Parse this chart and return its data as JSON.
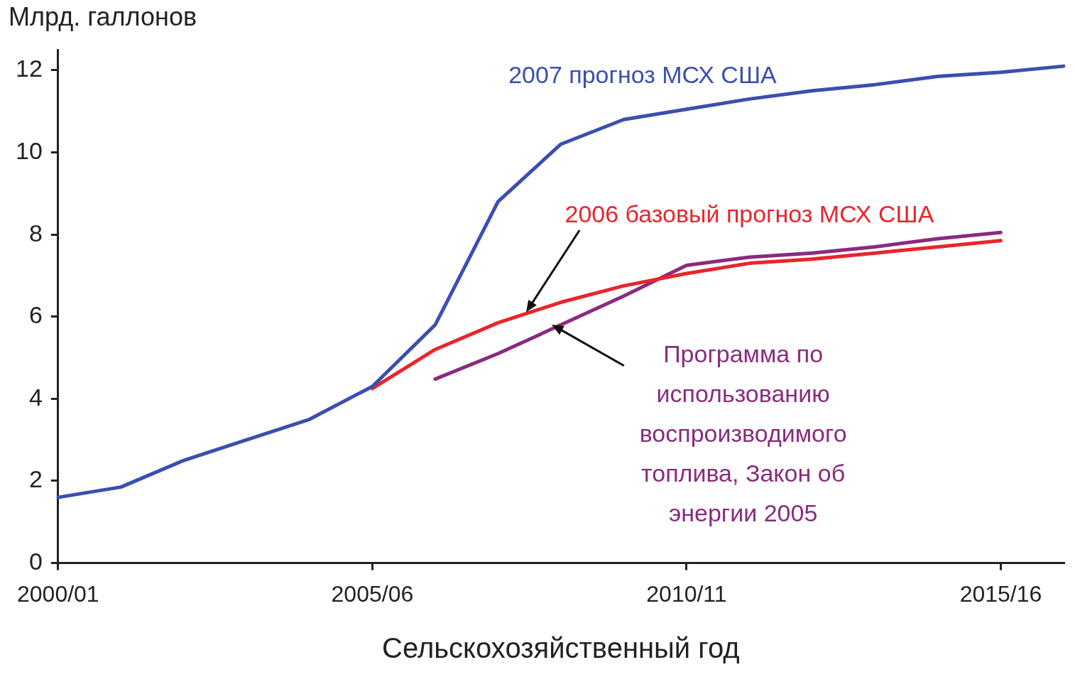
{
  "chart_data": {
    "type": "line",
    "xlabel": "Сельскохозяйственный год",
    "ylabel": "Млрд. галлонов",
    "categories": [
      "2000/01",
      null,
      null,
      null,
      null,
      "2005/06",
      null,
      null,
      null,
      null,
      "2010/11",
      null,
      null,
      null,
      null,
      "2015/16",
      null
    ],
    "ylim": [
      0,
      12.5
    ],
    "yticks": [
      0,
      2,
      4,
      6,
      8,
      10,
      12
    ],
    "grid": false,
    "legend": false,
    "marker": "none",
    "line_style": "solid",
    "series": [
      {
        "name": "2007 прогноз МСХ США",
        "color": "#3b4fb0",
        "values": [
          1.6,
          1.85,
          2.5,
          3.0,
          3.5,
          4.3,
          5.8,
          8.8,
          10.2,
          10.8,
          11.05,
          11.3,
          11.5,
          11.65,
          11.85,
          11.95,
          12.1
        ]
      },
      {
        "name": "2006 базовый прогноз МСХ США",
        "color": "#e8262c",
        "values": [
          null,
          null,
          null,
          null,
          null,
          4.25,
          5.2,
          5.85,
          6.35,
          6.75,
          7.05,
          7.3,
          7.4,
          7.55,
          7.7,
          7.85,
          null
        ]
      },
      {
        "name": "Программа по использованию воспроизводимого топлива, Закон об энергии 2005",
        "color": "#8a2b7e",
        "values": [
          null,
          null,
          null,
          null,
          null,
          null,
          4.48,
          5.1,
          5.8,
          6.5,
          7.25,
          7.45,
          7.55,
          7.7,
          7.9,
          8.05,
          null
        ]
      }
    ]
  }
}
